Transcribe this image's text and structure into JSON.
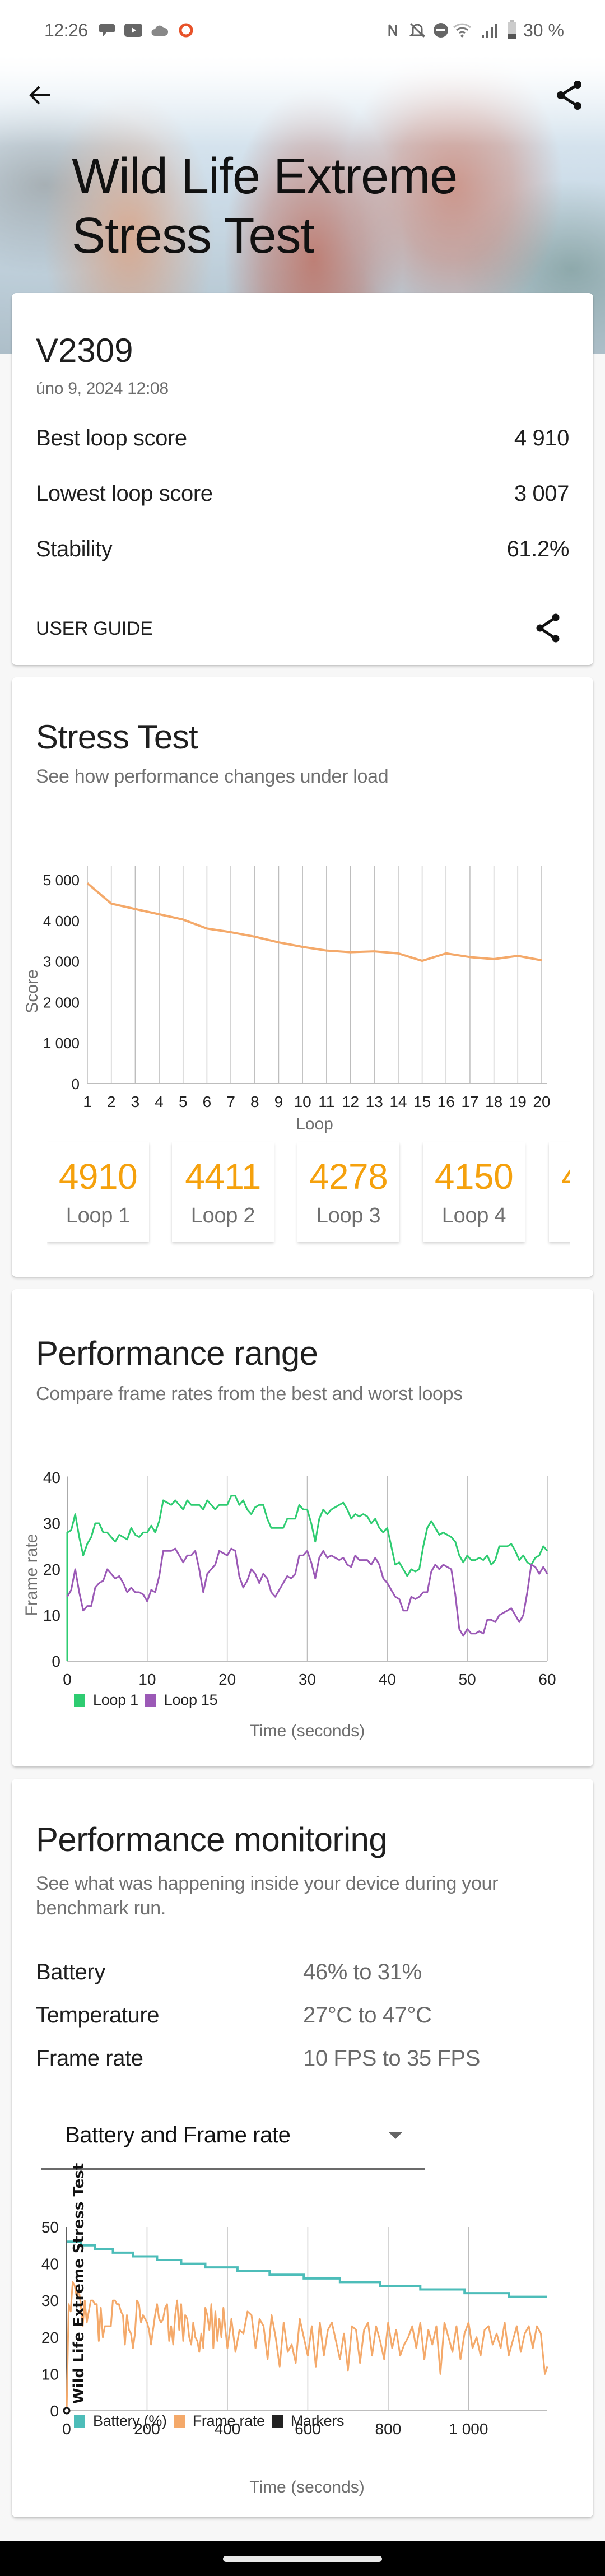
{
  "status_bar": {
    "time": "12:26",
    "left_icons": [
      "messages-icon",
      "youtube-icon",
      "cloud-icon",
      "record-circle-icon"
    ],
    "right_icons": [
      "nfc-icon",
      "bell-muted-icon",
      "do-not-disturb-icon",
      "wifi-icon",
      "signal-icon",
      "battery-icon"
    ],
    "battery_percent": "30 %",
    "record_color": "#e8532a"
  },
  "header": {
    "title": "Wild Life Extreme Stress Test",
    "back_icon": "arrow-back-icon",
    "share_icon": "share-icon"
  },
  "summary": {
    "device": "V2309",
    "date": "úno 9, 2024 12:08",
    "rows": [
      {
        "label": "Best loop score",
        "value": "4 910"
      },
      {
        "label": "Lowest loop score",
        "value": "3 007"
      },
      {
        "label": "Stability",
        "value": "61.2%"
      }
    ],
    "user_guide": "USER GUIDE",
    "share_icon": "share-icon"
  },
  "stress_test": {
    "title": "Stress Test",
    "subtitle": "See how performance changes under load",
    "loop_cards": [
      {
        "score": "4910",
        "label": "Loop 1"
      },
      {
        "score": "4411",
        "label": "Loop 2"
      },
      {
        "score": "4278",
        "label": "Loop 3"
      },
      {
        "score": "4150",
        "label": "Loop 4"
      },
      {
        "score": "4",
        "label": ""
      }
    ]
  },
  "performance_range": {
    "title": "Performance range",
    "subtitle": "Compare frame rates from the best and worst loops"
  },
  "performance_monitoring": {
    "title": "Performance monitoring",
    "subtitle": "See what was happening inside your device during your benchmark run.",
    "rows": [
      {
        "label": "Battery",
        "value": "46% to 31%"
      },
      {
        "label": "Temperature",
        "value": "27°C to 47°C"
      },
      {
        "label": "Frame rate",
        "value": "10 FPS to 35 FPS"
      }
    ],
    "dropdown": {
      "selected": "Battery and Frame rate",
      "icon": "dropdown-arrow-icon"
    }
  },
  "colors": {
    "accent_orange": "#f5a10d",
    "line_orange": "#f4a96a",
    "loop1_green": "#2ecc71",
    "loop15_purple": "#9b59b6",
    "battery_teal": "#4dbdb9",
    "markers_black": "#222222"
  },
  "chart_data": [
    {
      "type": "line",
      "title": "Stress Test",
      "xlabel": "Loop",
      "ylabel": "Score",
      "x": [
        1,
        2,
        3,
        4,
        5,
        6,
        7,
        8,
        9,
        10,
        11,
        12,
        13,
        14,
        15,
        16,
        17,
        18,
        19,
        20
      ],
      "xticks": [
        "1",
        "2",
        "3",
        "4",
        "5",
        "6",
        "7",
        "8",
        "9",
        "10",
        "11",
        "12",
        "13",
        "14",
        "15",
        "16",
        "17",
        "18",
        "19",
        "20"
      ],
      "yticks": [
        "0",
        "1 000",
        "2 000",
        "3 000",
        "4 000",
        "5 000"
      ],
      "ylim": [
        0,
        5400
      ],
      "grid": "vertical",
      "series": [
        {
          "name": "Score",
          "color": "#f4a96a",
          "values": [
            4910,
            4411,
            4278,
            4150,
            4020,
            3800,
            3710,
            3600,
            3460,
            3350,
            3260,
            3220,
            3240,
            3190,
            3007,
            3190,
            3100,
            3050,
            3130,
            3020
          ]
        }
      ]
    },
    {
      "type": "line",
      "title": "Performance range",
      "xlabel": "Time (seconds)",
      "ylabel": "Frame rate",
      "xlim": [
        0,
        60
      ],
      "ylim": [
        0,
        40
      ],
      "xticks": [
        "0",
        "10",
        "20",
        "30",
        "40",
        "50",
        "60"
      ],
      "yticks": [
        "0",
        "10",
        "20",
        "30",
        "40"
      ],
      "grid": "vertical",
      "legend": [
        "Loop 1",
        "Loop 15"
      ],
      "legend_position": "bottom-left",
      "x": [
        0,
        1,
        2,
        3,
        4,
        5,
        6,
        7,
        8,
        9,
        10,
        11,
        12,
        13,
        14,
        15,
        16,
        17,
        18,
        19,
        20,
        21,
        22,
        23,
        24,
        25,
        26,
        27,
        28,
        29,
        30,
        31,
        32,
        33,
        34,
        35,
        36,
        37,
        38,
        39,
        40,
        41,
        42,
        43,
        44,
        45,
        46,
        47,
        48,
        49,
        50,
        51,
        52,
        53,
        54,
        55,
        56,
        57,
        58,
        59,
        60
      ],
      "series": [
        {
          "name": "Loop 1",
          "color": "#2ecc71",
          "values": [
            28,
            32,
            23,
            27,
            30,
            28,
            26,
            27,
            29,
            27,
            28,
            28,
            35,
            34,
            34,
            35,
            34,
            33,
            34,
            34,
            34,
            36,
            35,
            32,
            34,
            31,
            29,
            29,
            31,
            34,
            33,
            26,
            33,
            33,
            34,
            33,
            32,
            32,
            30,
            29,
            29,
            21,
            20,
            20,
            20,
            29,
            29,
            28,
            27,
            23,
            23,
            22,
            22,
            21,
            25,
            25,
            24,
            23,
            21,
            23,
            24
          ]
        },
        {
          "name": "Loop 15",
          "color": "#9b59b6",
          "values": [
            14,
            20,
            11,
            12,
            17,
            20,
            18,
            17,
            16,
            15,
            13,
            15,
            24,
            24,
            23,
            23,
            24,
            15,
            20,
            24,
            23,
            24,
            16,
            20,
            17,
            18,
            14,
            17,
            18,
            23,
            24,
            18,
            24,
            23,
            22,
            21,
            23,
            22,
            21,
            21,
            17,
            14,
            11,
            14,
            14,
            15,
            21,
            21,
            20,
            7,
            7,
            6,
            6,
            9,
            10,
            11,
            10,
            10,
            21,
            19,
            19
          ]
        }
      ]
    },
    {
      "type": "line",
      "title": "Battery and Frame rate",
      "xlabel": "Time (seconds)",
      "ylabel": "",
      "marker_label": "Wild Life Extreme Stress Test",
      "xlim": [
        0,
        1196
      ],
      "ylim": [
        0,
        50
      ],
      "xticks": [
        "0",
        "200",
        "400",
        "600",
        "800",
        "1 000"
      ],
      "yticks": [
        "0",
        "10",
        "20",
        "30",
        "40",
        "50"
      ],
      "grid": "vertical",
      "legend": [
        "Battery (%)",
        "Frame rate",
        "Markers"
      ],
      "legend_position": "bottom-left",
      "series": [
        {
          "name": "Battery (%)",
          "color": "#4dbdb9",
          "type": "step",
          "x": [
            0,
            35,
            70,
            115,
            165,
            225,
            285,
            345,
            425,
            505,
            590,
            680,
            780,
            880,
            990,
            1100,
            1196
          ],
          "values": [
            46,
            45,
            44,
            43,
            42,
            41,
            40,
            39,
            38,
            37,
            36,
            35,
            34,
            33,
            32,
            31,
            31
          ]
        },
        {
          "name": "Frame rate",
          "color": "#f4a96a",
          "x": [
            0,
            5,
            10,
            15,
            20,
            25,
            30,
            35,
            40,
            45,
            50,
            55,
            60,
            65,
            70,
            75,
            80,
            85,
            90,
            95,
            100,
            105,
            110,
            115,
            120,
            125,
            130,
            135,
            140,
            145,
            150,
            155,
            160,
            165,
            170,
            175,
            180,
            185,
            190,
            195,
            200,
            205,
            210,
            215,
            220,
            225,
            230,
            235,
            240,
            245,
            250,
            255,
            260,
            265,
            270,
            275,
            280,
            285,
            290,
            295,
            300,
            305,
            310,
            315,
            320,
            325,
            330,
            335,
            340,
            345,
            350,
            355,
            360,
            365,
            370,
            375,
            380,
            385,
            390,
            395,
            400,
            410,
            420,
            430,
            440,
            450,
            460,
            470,
            480,
            490,
            500,
            510,
            520,
            530,
            540,
            550,
            560,
            570,
            580,
            590,
            600,
            610,
            620,
            630,
            640,
            650,
            660,
            670,
            680,
            690,
            700,
            710,
            720,
            730,
            740,
            750,
            760,
            770,
            780,
            790,
            800,
            810,
            820,
            830,
            840,
            850,
            860,
            870,
            880,
            890,
            900,
            910,
            920,
            930,
            940,
            950,
            960,
            970,
            980,
            990,
            1000,
            1010,
            1020,
            1030,
            1040,
            1050,
            1060,
            1070,
            1080,
            1090,
            1100,
            1110,
            1120,
            1130,
            1140,
            1150,
            1160,
            1170,
            1180,
            1190,
            1196
          ],
          "values": [
            0,
            29,
            27,
            35,
            34,
            31,
            33,
            29,
            23,
            30,
            24,
            27,
            30,
            30,
            29,
            29,
            19,
            28,
            20,
            23,
            23,
            23,
            23,
            30,
            30,
            29,
            29,
            27,
            26,
            18,
            26,
            22,
            21,
            17,
            21,
            30,
            29,
            24,
            26,
            25,
            24,
            22,
            18,
            22,
            26,
            29,
            25,
            24,
            25,
            28,
            29,
            19,
            23,
            18,
            26,
            30,
            22,
            29,
            19,
            26,
            25,
            20,
            18,
            24,
            20,
            19,
            16,
            21,
            17,
            28,
            26,
            22,
            29,
            17,
            27,
            19,
            25,
            20,
            28,
            22,
            17,
            25,
            16,
            22,
            21,
            27,
            26,
            17,
            25,
            23,
            14,
            26,
            20,
            12,
            24,
            16,
            18,
            13,
            25,
            20,
            15,
            23,
            12,
            24,
            15,
            22,
            24,
            19,
            14,
            21,
            11,
            23,
            22,
            13,
            22,
            24,
            15,
            23,
            19,
            14,
            24,
            17,
            22,
            15,
            18,
            20,
            23,
            17,
            24,
            14,
            22,
            18,
            23,
            10,
            24,
            20,
            16,
            23,
            14,
            21,
            24,
            17,
            20,
            15,
            22,
            23,
            18,
            21,
            17,
            24,
            15,
            19,
            23,
            16,
            21,
            23,
            17,
            23,
            21,
            10,
            12
          ]
        },
        {
          "name": "Markers",
          "color": "#222222",
          "x": [
            0
          ],
          "values": [
            0
          ]
        }
      ]
    }
  ]
}
